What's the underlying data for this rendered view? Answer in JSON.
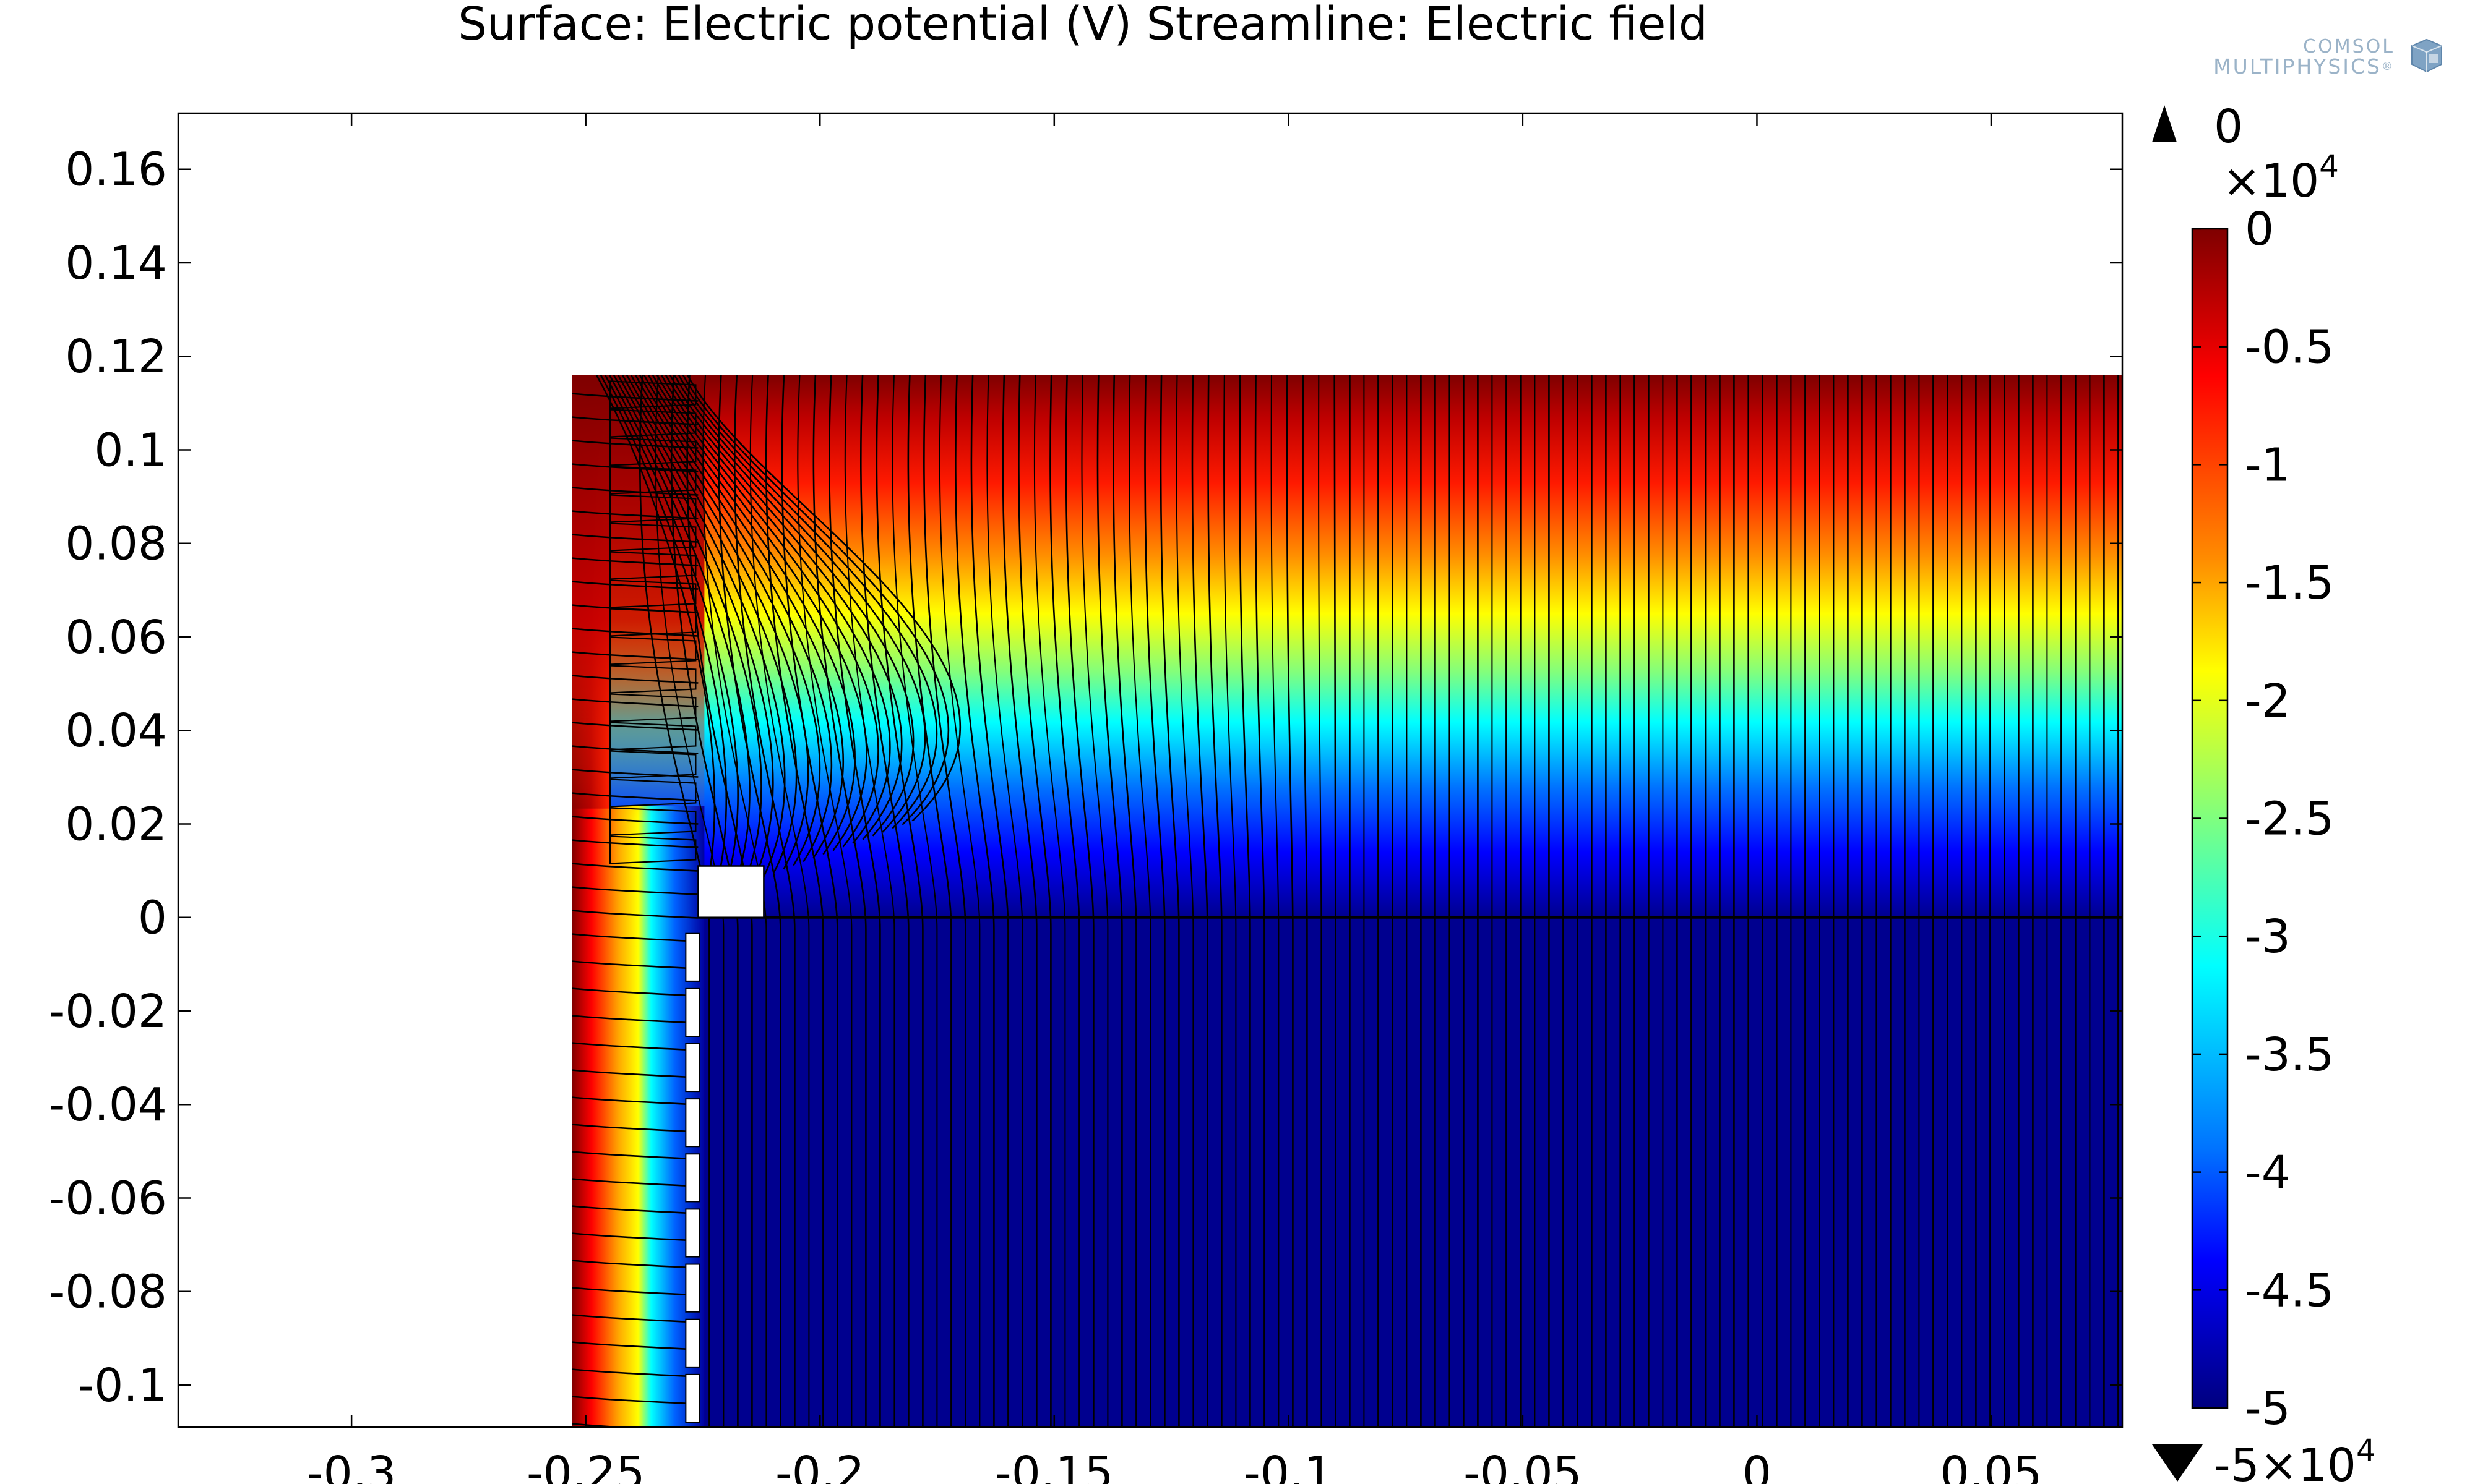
{
  "logo": {
    "line1": "COMSOL",
    "line2": "MULTIPHYSICS",
    "trademark": "®",
    "cube_color": "#6a93b8"
  },
  "chart_data": {
    "type": "heatmap",
    "title": "Surface: Electric potential (V)  Streamline: Electric field",
    "xlabel": "",
    "ylabel": "",
    "xlim": [
      -0.337,
      0.078
    ],
    "ylim": [
      -0.109,
      0.172
    ],
    "x_ticks": [
      -0.3,
      -0.25,
      -0.2,
      -0.15,
      -0.1,
      -0.05,
      0,
      0.05
    ],
    "x_tick_labels": [
      "-0.3",
      "-0.25",
      "-0.2",
      "-0.15",
      "-0.1",
      "-0.05",
      "0",
      "0.05"
    ],
    "y_ticks": [
      0.16,
      0.14,
      0.12,
      0.1,
      0.08,
      0.06,
      0.04,
      0.02,
      0,
      -0.02,
      -0.04,
      -0.06,
      -0.08,
      -0.1
    ],
    "y_tick_labels": [
      "0.16",
      "0.14",
      "0.12",
      "0.1",
      "0.08",
      "0.06",
      "0.04",
      "0.02",
      "0",
      "-0.02",
      "-0.04",
      "-0.06",
      "-0.08",
      "-0.1"
    ],
    "domain": {
      "x_range": [
        -0.253,
        0.078
      ],
      "y_range": [
        -0.109,
        0.116
      ],
      "electrode_cap": {
        "x_range": [
          -0.226,
          -0.212
        ],
        "y_range": [
          0,
          0.011
        ]
      },
      "grid_wire_x": -0.226,
      "grid_slots": 9
    },
    "colorbar": {
      "colormap": "rainbow (jet)",
      "min": -50000,
      "max": 0,
      "tick_values": [
        0,
        -0.5,
        -1,
        -1.5,
        -2,
        -2.5,
        -3,
        -3.5,
        -4,
        -4.5,
        -5
      ],
      "tick_labels": [
        "0",
        "-0.5",
        "-1",
        "-1.5",
        "-2",
        "-2.5",
        "-3",
        "-3.5",
        "-4",
        "-4.5",
        "-5"
      ],
      "multiplier_label": "×10",
      "multiplier_exp": "4",
      "max_marker_label": "0",
      "min_marker_label": "-5×10",
      "min_marker_exp": "4"
    },
    "streamlines": {
      "color": "#000000",
      "quantity": "Electric field"
    },
    "surface": {
      "quantity": "Electric potential",
      "unit": "V",
      "value_at_top": 0,
      "value_in_lower_region": -50000,
      "value_at_outer_wall": 0
    }
  }
}
